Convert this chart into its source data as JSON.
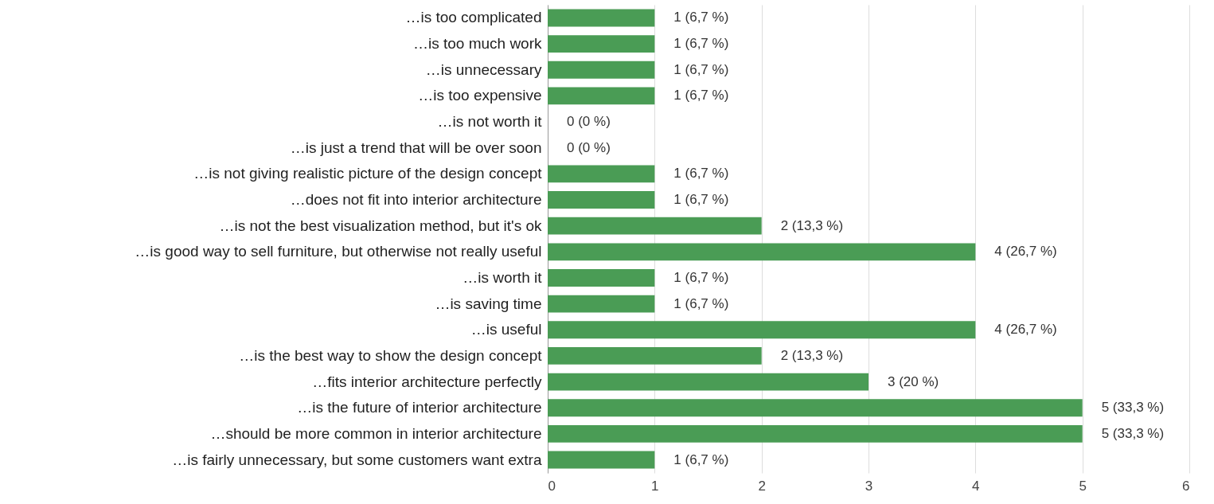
{
  "chart_data": {
    "type": "bar",
    "orientation": "horizontal",
    "categories": [
      "…is too complicated",
      "…is too much work",
      "…is unnecessary",
      "…is too expensive",
      "…is not worth it",
      "…is just a trend that will be over soon",
      "…is not giving realistic picture of the design concept",
      "…does not fit into interior architecture",
      "…is not the best visualization method, but it's ok",
      "…is good way to sell furniture, but otherwise not really useful",
      "…is worth it",
      "…is saving time",
      "…is useful",
      "…is the best way to show the design concept",
      "…fits interior architecture perfectly",
      "…is the future of interior architecture",
      "…should be more common in interior architecture",
      "…is fairly unnecessary, but some customers want extra"
    ],
    "values": [
      1,
      1,
      1,
      1,
      0,
      0,
      1,
      1,
      2,
      4,
      1,
      1,
      4,
      2,
      3,
      5,
      5,
      1
    ],
    "value_labels": [
      "1 (6,7 %)",
      "1 (6,7 %)",
      "1 (6,7 %)",
      "1 (6,7 %)",
      "0 (0 %)",
      "0 (0 %)",
      "1 (6,7 %)",
      "1 (6,7 %)",
      "2 (13,3 %)",
      "4 (26,7 %)",
      "1 (6,7 %)",
      "1 (6,7 %)",
      "4 (26,7 %)",
      "2 (13,3 %)",
      "3 (20 %)",
      "5 (33,3 %)",
      "5 (33,3 %)",
      "1 (6,7 %)"
    ],
    "color": "#4a9c55",
    "xlim": [
      0,
      6
    ],
    "xticks": [
      0,
      1,
      2,
      3,
      4,
      5,
      6
    ],
    "grid": "x"
  }
}
